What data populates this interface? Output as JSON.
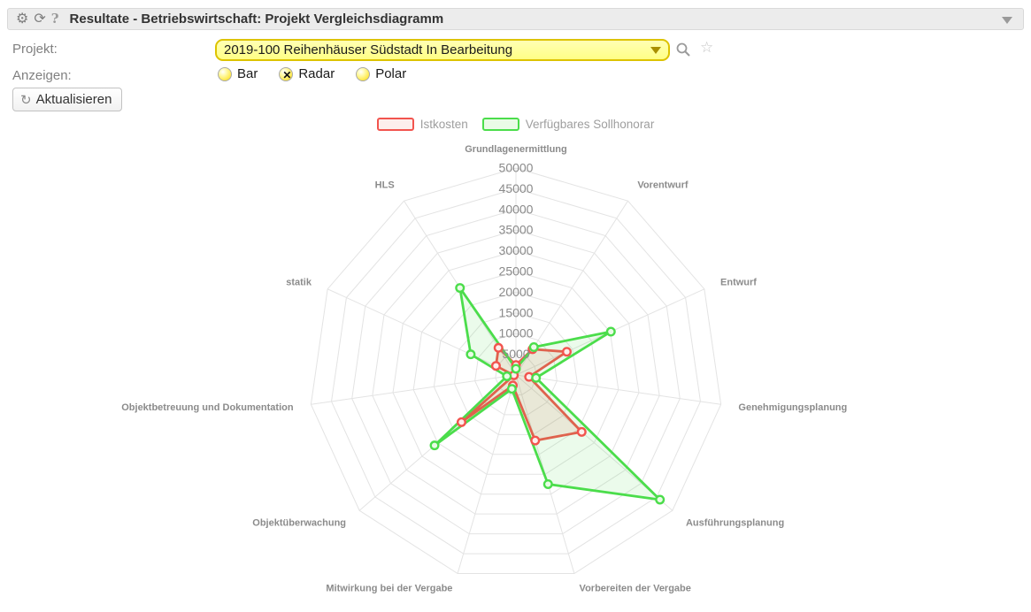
{
  "header": {
    "title": "Resultate - Betriebswirtschaft: Projekt Vergleichsdiagramm"
  },
  "form": {
    "project_label": "Projekt:",
    "project_value": "2019-100 Reihenhäuser Südstadt In Bearbeitung",
    "display_label": "Anzeigen:",
    "options": [
      {
        "label": "Bar",
        "selected": false
      },
      {
        "label": "Radar",
        "selected": true
      },
      {
        "label": "Polar",
        "selected": false
      }
    ],
    "refresh_button": "Aktualisieren",
    "accent_yellow": "#ffee55"
  },
  "chart_data": {
    "type": "radar",
    "categories": [
      "Grundlagenermittlung",
      "Vorentwurf",
      "Entwurf",
      "Genehmigungsplanung",
      "Ausführungsplanung",
      "Vorbereiten der Vergabe",
      "Mitwirkung bei der Vergabe",
      "Objektüberwachung",
      "Objektbetreuung und Dokumentation",
      "statik",
      "HLS"
    ],
    "series": [
      {
        "name": "Istkosten",
        "color": "#f2544e",
        "fill": "rgba(242,84,78,0.12)",
        "marker_fill": "#fdeeec",
        "values": [
          2400,
          7400,
          13500,
          3200,
          21000,
          16500,
          2650,
          17400,
          500,
          5300,
          7800
        ]
      },
      {
        "name": "Verfügbares Sollhonorar",
        "color": "#4bdd4b",
        "fill": "rgba(75,221,75,0.11)",
        "marker_fill": "#eafbe7",
        "values": [
          1500,
          8000,
          25200,
          4900,
          46000,
          27500,
          3500,
          26000,
          2200,
          12000,
          25000
        ]
      }
    ],
    "rmin": 0,
    "rmax": 50000,
    "tick_step": 5000,
    "rings": 10,
    "grid": true,
    "grid_color": "#e3e3e3",
    "legend_position": "top"
  }
}
